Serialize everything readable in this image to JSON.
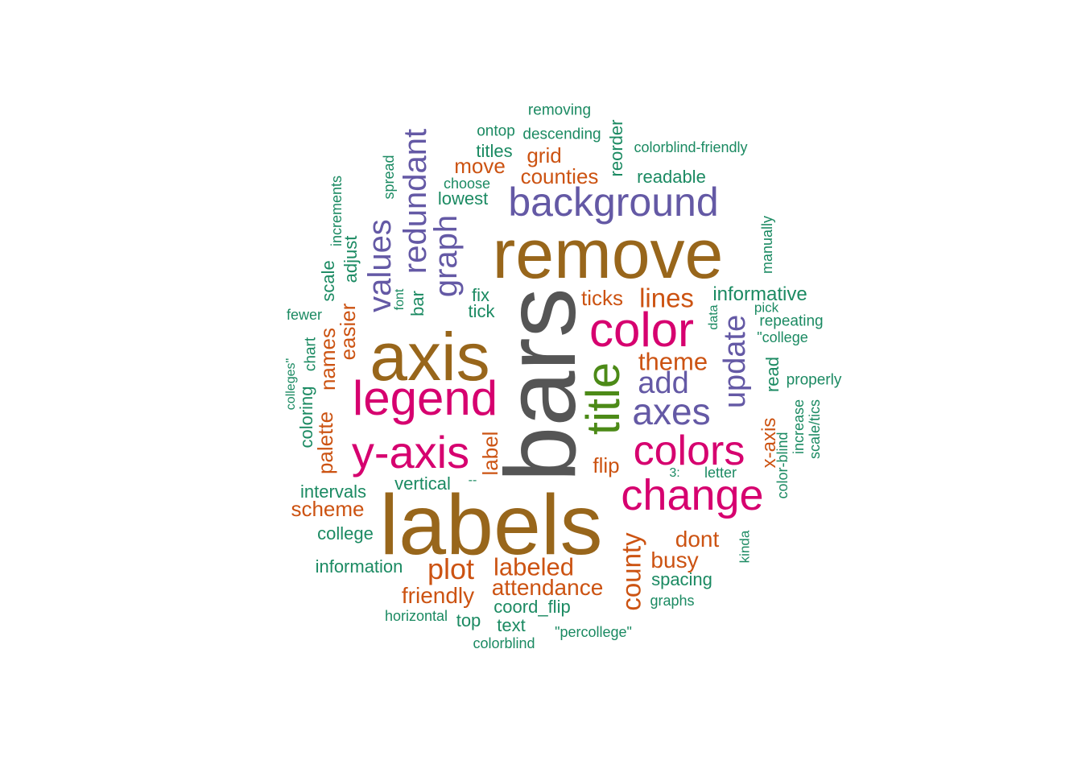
{
  "colors": {
    "grey": "#555555",
    "brown": "#98661b",
    "magenta": "#d6006f",
    "green": "#4c8a17",
    "purple": "#6459a5",
    "orange": "#cc5312",
    "teal": "#1b8a62"
  },
  "words": [
    {
      "text": "bars",
      "color": "grey"
    },
    {
      "text": "labels",
      "color": "brown"
    },
    {
      "text": "axis",
      "color": "brown"
    },
    {
      "text": "remove",
      "color": "brown"
    },
    {
      "text": "legend",
      "color": "magenta"
    },
    {
      "text": "y-axis",
      "color": "magenta"
    },
    {
      "text": "color",
      "color": "magenta"
    },
    {
      "text": "change",
      "color": "magenta"
    },
    {
      "text": "colors",
      "color": "magenta"
    },
    {
      "text": "title",
      "color": "green"
    },
    {
      "text": "background",
      "color": "purple"
    },
    {
      "text": "axes",
      "color": "purple"
    },
    {
      "text": "add",
      "color": "purple"
    },
    {
      "text": "update",
      "color": "purple"
    },
    {
      "text": "values",
      "color": "purple"
    },
    {
      "text": "redundant",
      "color": "purple"
    },
    {
      "text": "graph",
      "color": "purple"
    },
    {
      "text": "lines",
      "color": "orange"
    },
    {
      "text": "theme",
      "color": "orange"
    },
    {
      "text": "county",
      "color": "orange"
    },
    {
      "text": "plot",
      "color": "orange"
    },
    {
      "text": "labeled",
      "color": "orange"
    },
    {
      "text": "attendance",
      "color": "orange"
    },
    {
      "text": "friendly",
      "color": "orange"
    },
    {
      "text": "dont",
      "color": "orange"
    },
    {
      "text": "busy",
      "color": "orange"
    },
    {
      "text": "scheme",
      "color": "orange"
    },
    {
      "text": "names",
      "color": "orange"
    },
    {
      "text": "easier",
      "color": "orange"
    },
    {
      "text": "palette",
      "color": "orange"
    },
    {
      "text": "label",
      "color": "orange"
    },
    {
      "text": "flip",
      "color": "orange"
    },
    {
      "text": "ticks",
      "color": "orange"
    },
    {
      "text": "counties",
      "color": "orange"
    },
    {
      "text": "move",
      "color": "orange"
    },
    {
      "text": "grid",
      "color": "orange"
    },
    {
      "text": "x-axis",
      "color": "orange"
    },
    {
      "text": "informative",
      "color": "teal"
    },
    {
      "text": "readable",
      "color": "teal"
    },
    {
      "text": "colorblind-friendly",
      "color": "teal"
    },
    {
      "text": "descending",
      "color": "teal"
    },
    {
      "text": "removing",
      "color": "teal"
    },
    {
      "text": "ontop",
      "color": "teal"
    },
    {
      "text": "titles",
      "color": "teal"
    },
    {
      "text": "choose",
      "color": "teal"
    },
    {
      "text": "lowest",
      "color": "teal"
    },
    {
      "text": "reorder",
      "color": "teal"
    },
    {
      "text": "manually",
      "color": "teal"
    },
    {
      "text": "spread",
      "color": "teal"
    },
    {
      "text": "increments",
      "color": "teal"
    },
    {
      "text": "adjust",
      "color": "teal"
    },
    {
      "text": "scale",
      "color": "teal"
    },
    {
      "text": "font",
      "color": "teal"
    },
    {
      "text": "bar",
      "color": "teal"
    },
    {
      "text": "fix",
      "color": "teal"
    },
    {
      "text": "tick",
      "color": "teal"
    },
    {
      "text": "fewer",
      "color": "teal"
    },
    {
      "text": "data",
      "color": "teal"
    },
    {
      "text": "pick",
      "color": "teal"
    },
    {
      "text": "repeating",
      "color": "teal"
    },
    {
      "text": "\"college",
      "color": "teal"
    },
    {
      "text": "read",
      "color": "teal"
    },
    {
      "text": "properly",
      "color": "teal"
    },
    {
      "text": "increase",
      "color": "teal"
    },
    {
      "text": "scale/tics",
      "color": "teal"
    },
    {
      "text": "color-blind",
      "color": "teal"
    },
    {
      "text": "colleges\"",
      "color": "teal"
    },
    {
      "text": "chart",
      "color": "teal"
    },
    {
      "text": "coloring",
      "color": "teal"
    },
    {
      "text": "intervals",
      "color": "teal"
    },
    {
      "text": "vertical",
      "color": "teal"
    },
    {
      "text": "--",
      "color": "teal"
    },
    {
      "text": "3:",
      "color": "teal"
    },
    {
      "text": "letter",
      "color": "teal"
    },
    {
      "text": "college",
      "color": "teal"
    },
    {
      "text": "information",
      "color": "teal"
    },
    {
      "text": "kinda",
      "color": "teal"
    },
    {
      "text": "spacing",
      "color": "teal"
    },
    {
      "text": "graphs",
      "color": "teal"
    },
    {
      "text": "coord_flip",
      "color": "teal"
    },
    {
      "text": "horizontal",
      "color": "teal"
    },
    {
      "text": "top",
      "color": "teal"
    },
    {
      "text": "text",
      "color": "teal"
    },
    {
      "text": "\"percollege\"",
      "color": "teal"
    },
    {
      "text": "colorblind",
      "color": "teal"
    }
  ]
}
